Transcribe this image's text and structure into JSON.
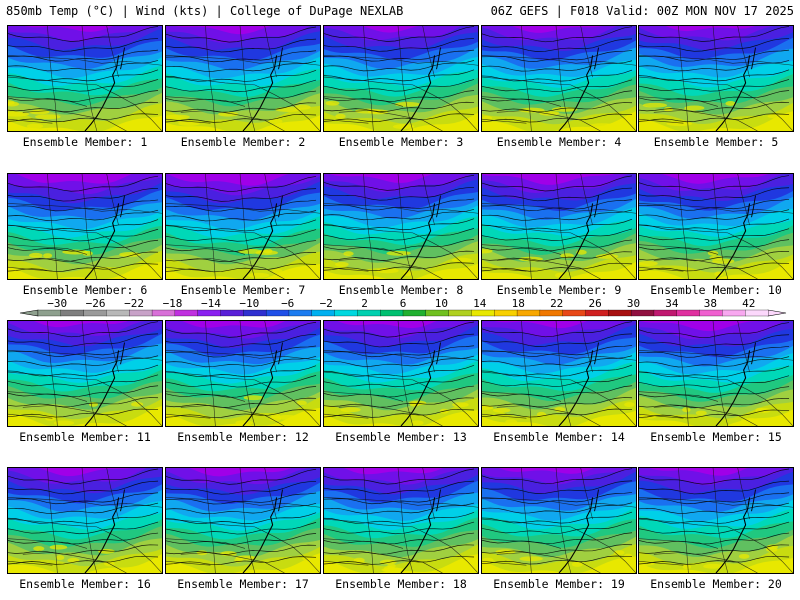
{
  "header": {
    "left": "850mb Temp (°C) | Wind (kts) | College of DuPage NEXLAB",
    "right": "06Z GEFS | F018 Valid: 00Z MON NOV 17 2025"
  },
  "member_prefix": "Ensemble Member: ",
  "members": [
    {
      "label": "Ensemble Member: 1",
      "cold": 0.0
    },
    {
      "label": "Ensemble Member: 2",
      "cold": 0.1
    },
    {
      "label": "Ensemble Member: 3",
      "cold": 0.0
    },
    {
      "label": "Ensemble Member: 4",
      "cold": 0.05
    },
    {
      "label": "Ensemble Member: 5",
      "cold": 0.0
    },
    {
      "label": "Ensemble Member: 6",
      "cold": 0.3
    },
    {
      "label": "Ensemble Member: 7",
      "cold": 0.35
    },
    {
      "label": "Ensemble Member: 8",
      "cold": 0.15
    },
    {
      "label": "Ensemble Member: 9",
      "cold": 0.25
    },
    {
      "label": "Ensemble Member: 10",
      "cold": 0.2
    },
    {
      "label": "Ensemble Member: 11",
      "cold": 0.05
    },
    {
      "label": "Ensemble Member: 12",
      "cold": 0.15
    },
    {
      "label": "Ensemble Member: 13",
      "cold": 0.1
    },
    {
      "label": "Ensemble Member: 14",
      "cold": 0.05
    },
    {
      "label": "Ensemble Member: 15",
      "cold": 0.2
    },
    {
      "label": "Ensemble Member: 16",
      "cold": 0.1
    },
    {
      "label": "Ensemble Member: 17",
      "cold": 0.15
    },
    {
      "label": "Ensemble Member: 18",
      "cold": 0.1
    },
    {
      "label": "Ensemble Member: 19",
      "cold": 0.05
    },
    {
      "label": "Ensemble Member: 20",
      "cold": 0.1
    }
  ],
  "colorbar": {
    "tick_labels": [
      "-30",
      "-26",
      "-22",
      "-18",
      "-14",
      "-10",
      "-6",
      "-2",
      "2",
      "6",
      "10",
      "14",
      "18",
      "22",
      "26",
      "30",
      "34",
      "38",
      "42"
    ],
    "colors": [
      "#8ea08e",
      "#7f7f7f",
      "#9a9a9a",
      "#b8b8b8",
      "#c8a2c8",
      "#d870d8",
      "#c030e0",
      "#8a20f0",
      "#5a20d8",
      "#3030d0",
      "#2050e8",
      "#1c7cf0",
      "#00b0f0",
      "#00d8e0",
      "#00d0b0",
      "#00c070",
      "#20b030",
      "#70c020",
      "#b0d020",
      "#e8e800",
      "#f8d000",
      "#f8a800",
      "#f07800",
      "#e84818",
      "#d02020",
      "#a81010",
      "#901040",
      "#c01870",
      "#e030a0",
      "#f060d0",
      "#f8a8f0",
      "#fcd8fc"
    ]
  },
  "map_colors": {
    "bands": [
      "#a000e8",
      "#7010e8",
      "#4a20e0",
      "#2038e0",
      "#1a70f0",
      "#10a8f0",
      "#00d0e8",
      "#00d8b8",
      "#20c880",
      "#60c060",
      "#a0d040",
      "#c8dc10",
      "#e8e800"
    ]
  }
}
